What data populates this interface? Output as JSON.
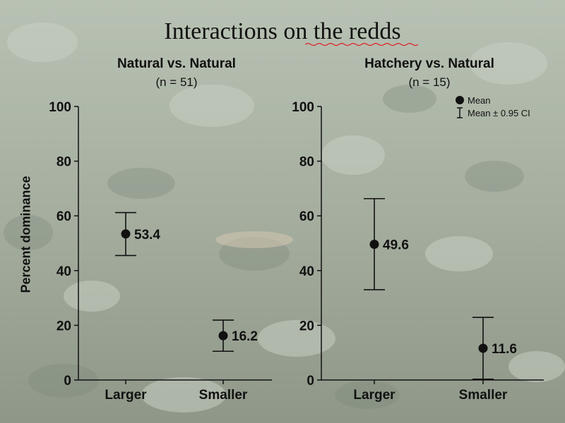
{
  "slide": {
    "title": "Interactions on the redds"
  },
  "colors": {
    "ink": "#111111",
    "background": "#8f9a8c"
  },
  "legend": {
    "mean_label": "Mean",
    "ci_label": "Mean ± 0.95 CI"
  },
  "chart_data": [
    {
      "type": "scatter",
      "title": "Natural vs. Natural",
      "subtitle": "(n = 51)",
      "ylabel": "Percent dominance",
      "xlabel": "",
      "ylim": [
        0,
        100
      ],
      "yticks": [
        "0",
        "20",
        "40",
        "60",
        "80",
        "100"
      ],
      "categories": [
        "Larger",
        "Smaller"
      ],
      "means": [
        53.4,
        16.2
      ],
      "mean_labels": [
        "53.4",
        "16.2"
      ],
      "ci_low": [
        45.5,
        10.5
      ],
      "ci_high": [
        61.2,
        21.9
      ],
      "grid": false
    },
    {
      "type": "scatter",
      "title": "Hatchery vs. Natural",
      "subtitle": "(n = 15)",
      "ylabel": "",
      "xlabel": "",
      "ylim": [
        0,
        100
      ],
      "yticks": [
        "0",
        "20",
        "40",
        "60",
        "80",
        "100"
      ],
      "categories": [
        "Larger",
        "Smaller"
      ],
      "means": [
        49.6,
        11.6
      ],
      "mean_labels": [
        "49.6",
        "11.6"
      ],
      "ci_low": [
        33.0,
        0.3
      ],
      "ci_high": [
        66.3,
        22.9
      ],
      "grid": false,
      "legend_position": "top-right"
    }
  ]
}
